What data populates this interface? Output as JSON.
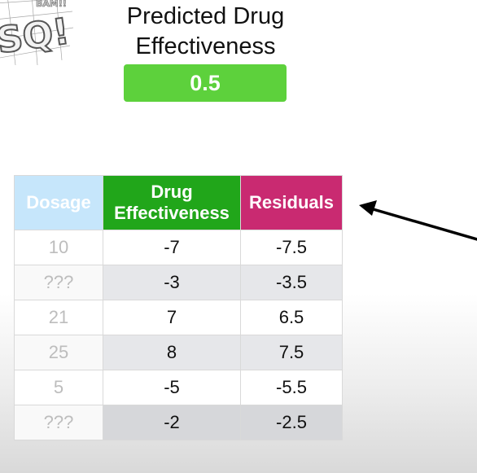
{
  "logo": {
    "text_top": "BAM!!",
    "text_main": "SQ!"
  },
  "title": {
    "line1": "Predicted Drug",
    "line2": "Effectiveness"
  },
  "predicted_value": "0.5",
  "table": {
    "headers": {
      "dosage": "Dosage",
      "drug_line1": "Drug",
      "drug_line2": "Effectiveness",
      "residuals": "Residuals"
    },
    "rows": [
      {
        "dosage": "10",
        "effectiveness": "-7",
        "residual": "-7.5"
      },
      {
        "dosage": "???",
        "effectiveness": "-3",
        "residual": "-3.5"
      },
      {
        "dosage": "21",
        "effectiveness": "7",
        "residual": "6.5"
      },
      {
        "dosage": "25",
        "effectiveness": "8",
        "residual": "7.5"
      },
      {
        "dosage": "5",
        "effectiveness": "-5",
        "residual": "-5.5"
      },
      {
        "dosage": "???",
        "effectiveness": "-2",
        "residual": "-2.5"
      }
    ]
  },
  "colors": {
    "predicted_box": "#5dd13c",
    "dosage_header": "#c6e6fb",
    "drug_header": "#21a61a",
    "residuals_header": "#c92a71"
  }
}
